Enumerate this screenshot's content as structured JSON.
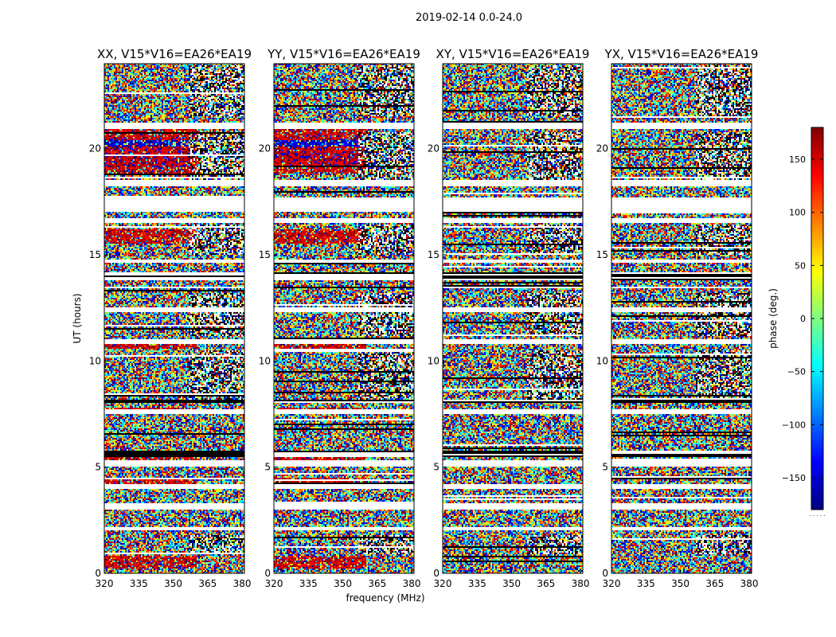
{
  "figure": {
    "suptitle": "2019-02-14 0.0-24.0",
    "colorbar_label": "phase (deg.)",
    "colorbar_ticks": [
      -150,
      -100,
      -50,
      0,
      50,
      100,
      150
    ],
    "colorbar_range": [
      -180,
      180
    ],
    "colorbar_colormap": "jet",
    "colorbar_footer": ". . . . ."
  },
  "chart_data": [
    {
      "type": "heatmap",
      "title": "XX, V15*V16=EA26*EA19",
      "xlabel": "",
      "ylabel": "UT (hours)",
      "xlim": [
        320,
        381
      ],
      "ylim": [
        0,
        24
      ],
      "xticks": [
        320,
        335,
        350,
        365,
        380
      ],
      "yticks": [
        0,
        5,
        10,
        15,
        20
      ],
      "value_range": [
        -180,
        180
      ],
      "style": "parallel",
      "z": "noisy phase per frequency channel and time integration (deg.)"
    },
    {
      "type": "heatmap",
      "title": "YY, V15*V16=EA26*EA19",
      "xlabel": "frequency (MHz)",
      "ylabel": "",
      "xlim": [
        320,
        381
      ],
      "ylim": [
        0,
        24
      ],
      "xticks": [
        320,
        335,
        350,
        365,
        380
      ],
      "yticks": [
        0,
        5,
        10,
        15,
        20
      ],
      "value_range": [
        -180,
        180
      ],
      "style": "parallel",
      "z": "noisy phase per frequency channel and time integration (deg.)"
    },
    {
      "type": "heatmap",
      "title": "XY, V15*V16=EA26*EA19",
      "xlabel": "",
      "ylabel": "",
      "xlim": [
        320,
        381
      ],
      "ylim": [
        0,
        24
      ],
      "xticks": [
        320,
        335,
        350,
        365,
        380
      ],
      "yticks": [
        0,
        5,
        10,
        15,
        20
      ],
      "value_range": [
        -180,
        180
      ],
      "style": "cross",
      "z": "noisy phase per frequency channel and time integration (deg.)"
    },
    {
      "type": "heatmap",
      "title": "YX, V15*V16=EA26*EA19",
      "xlabel": "",
      "ylabel": "",
      "xlim": [
        320,
        381
      ],
      "ylim": [
        0,
        24
      ],
      "xticks": [
        320,
        335,
        350,
        365,
        380
      ],
      "yticks": [
        0,
        5,
        10,
        15,
        20
      ],
      "value_range": [
        -180,
        180
      ],
      "style": "cross",
      "z": "noisy phase per frequency channel and time integration (deg.)"
    }
  ]
}
